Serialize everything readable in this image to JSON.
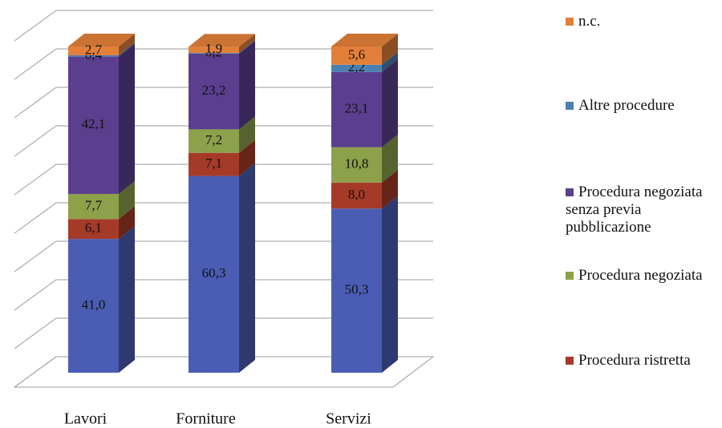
{
  "chart_data": {
    "type": "bar3d_stacked",
    "categories": [
      "Lavori",
      "Forniture",
      "Servizi"
    ],
    "ylim": [
      0,
      100
    ],
    "grid": true,
    "legend": "right",
    "series": [
      {
        "color": "#4a5cb3",
        "values": [
          41.0,
          60.3,
          50.3
        ],
        "value_labels": [
          "41,0",
          "60,3",
          "50,3"
        ]
      },
      {
        "name": "Procedura ristretta",
        "color": "#a63a28",
        "values": [
          6.1,
          7.1,
          8.0
        ],
        "value_labels": [
          "6,1",
          "7,1",
          "8,0"
        ]
      },
      {
        "name": "Procedura negoziata",
        "color": "#8da04a",
        "values": [
          7.7,
          7.2,
          10.8
        ],
        "value_labels": [
          "7,7",
          "7,2",
          "10,8"
        ]
      },
      {
        "name": "Procedura negoziata senza previa pubblicazione",
        "color": "#5b3f8e",
        "values": [
          42.1,
          23.2,
          23.1
        ],
        "value_labels": [
          "42,1",
          "23,2",
          "23,1"
        ]
      },
      {
        "name": "Altre procedure",
        "color": "#4a80b2",
        "values": [
          0.4,
          0.2,
          2.2
        ],
        "value_labels": [
          "0,4",
          "0,2",
          "2,2"
        ]
      },
      {
        "name": "n.c.",
        "color": "#e2803a",
        "values": [
          2.7,
          1.9,
          5.6
        ],
        "value_labels": [
          "2,7",
          "1,9",
          "5,6"
        ]
      }
    ]
  }
}
